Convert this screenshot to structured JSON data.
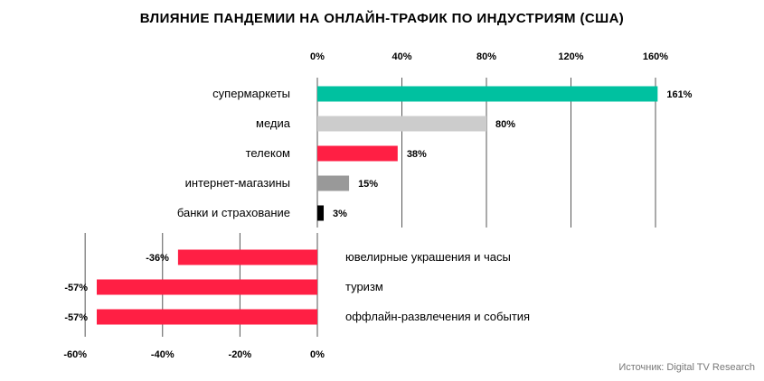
{
  "title": "ВЛИЯНИЕ ПАНДЕМИИ НА ОНЛАЙН-ТРАФИК ПО ИНДУСТРИЯМ (США)",
  "source": "Источник: Digital TV Research",
  "chart_data": {
    "type": "bar",
    "orientation": "horizontal",
    "title": "ВЛИЯНИЕ ПАНДЕМИИ НА ОНЛАЙН-ТРАФИК ПО ИНДУСТРИЯМ (США)",
    "positive": {
      "categories": [
        "супермаркеты",
        "медиа",
        "телеком",
        "интернет-магазины",
        "банки и страхование"
      ],
      "values": [
        161,
        80,
        38,
        15,
        3
      ],
      "labels": [
        "161%",
        "80%",
        "38%",
        "15%",
        "3%"
      ],
      "colors": [
        "#00c1a0",
        "#cccccc",
        "#ff1f44",
        "#999999",
        "#000000"
      ],
      "xlim": [
        0,
        160
      ],
      "ticks": [
        "0%",
        "40%",
        "80%",
        "120%",
        "160%"
      ],
      "tick_values": [
        0,
        40,
        80,
        120,
        160
      ],
      "axis_position": "top"
    },
    "negative": {
      "categories": [
        "ювелирные украшения и часы",
        "туризм",
        "оффлайн-развлечения и события"
      ],
      "values": [
        -36,
        -57,
        -57
      ],
      "labels": [
        "-36%",
        "-57%",
        "-57%"
      ],
      "colors": [
        "#ff1f44",
        "#ff1f44",
        "#ff1f44"
      ],
      "xlim": [
        -60,
        0
      ],
      "ticks": [
        "-60%",
        "-40%",
        "-20%",
        "0%"
      ],
      "tick_values": [
        -60,
        -40,
        -20,
        0
      ],
      "axis_position": "bottom"
    },
    "grid": true,
    "unit": "%"
  }
}
